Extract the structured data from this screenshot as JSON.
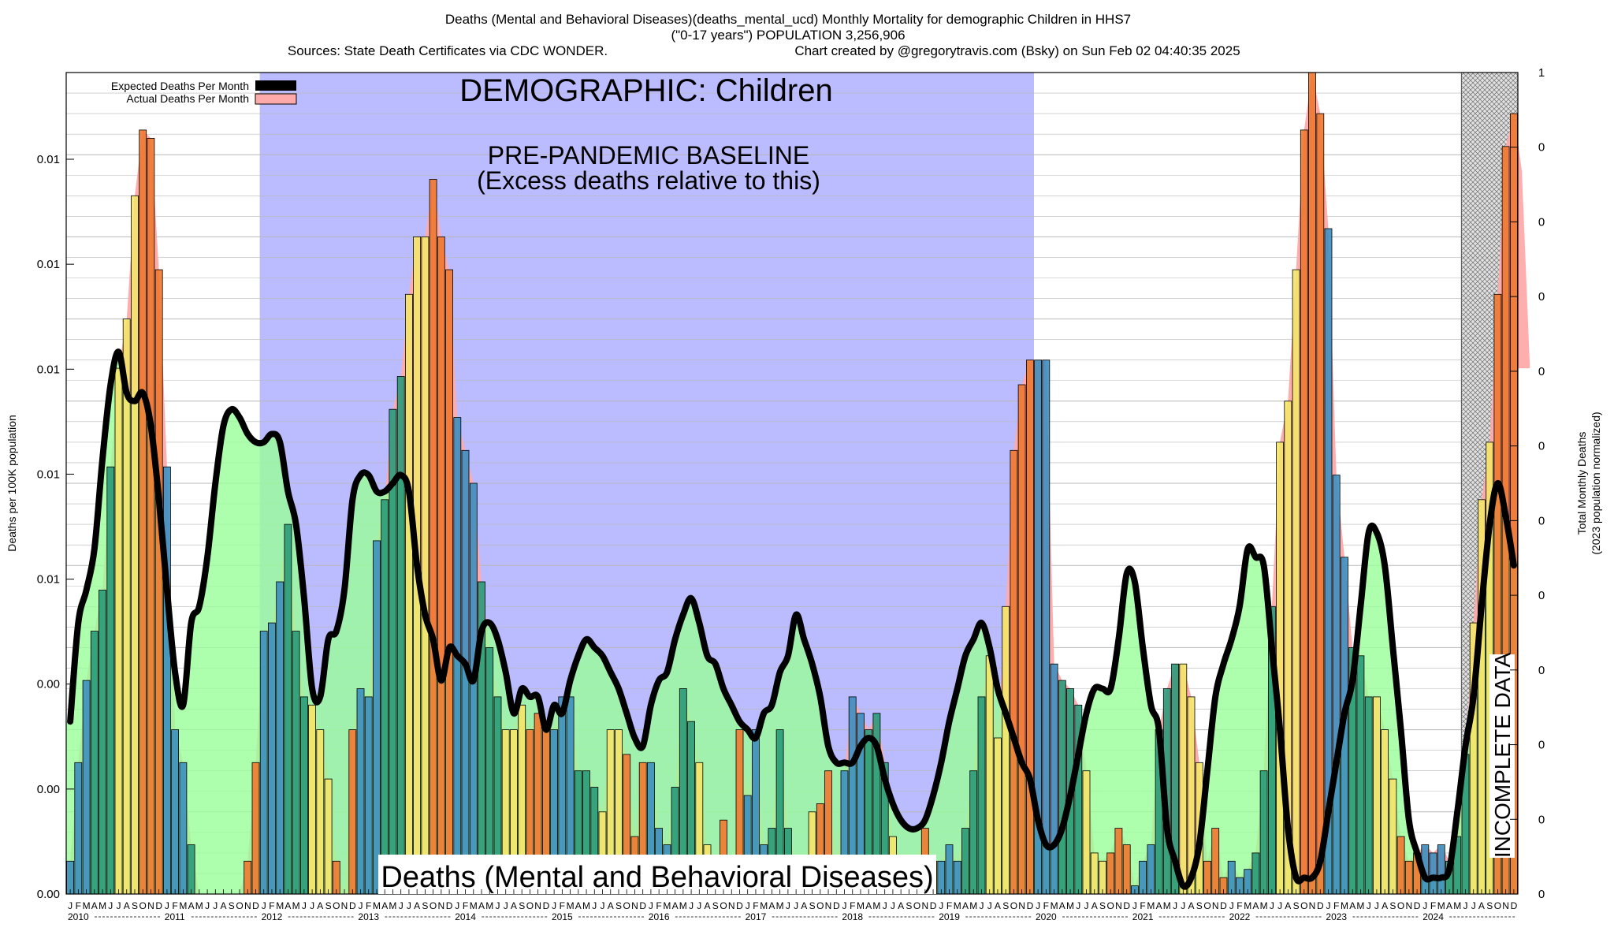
{
  "header": {
    "title_line1": "Deaths (Mental and Behavioral Diseases)(deaths_mental_ucd) Monthly Mortality for demographic Children in HHS7",
    "title_line2": "(\"0-17 years\") POPULATION 3,256,906",
    "sources": "Sources: State Death Certificates via CDC WONDER.",
    "credit": "Chart created by @gregorytravis.com (Bsky) on Sun Feb 02 04:40:35 2025"
  },
  "legend": {
    "expected": "Expected Deaths Per Month",
    "actual": "Actual Deaths Per Month",
    "placement": "top-left"
  },
  "annotations": {
    "demographic": "DEMOGRAPHIC: Children",
    "baseline_line1": "PRE-PANDEMIC BASELINE",
    "baseline_line2": "(Excess deaths relative to this)",
    "bottom_label": "Deaths (Mental and Behavioral Diseases)",
    "incomplete": "INCOMPLETE DATA"
  },
  "axes": {
    "ylabel_left": "Deaths per 100K population",
    "ylabel_right_line1": "Total Monthly Deaths",
    "ylabel_right_line2": "(2023 population normalized)",
    "left_ticks": [
      "0.00",
      "0.00",
      "0.00",
      "0.01",
      "0.01",
      "0.01",
      "0.01",
      "0.01"
    ],
    "right_ticks": [
      "0",
      "0",
      "0",
      "0",
      "0",
      "0",
      "0",
      "0",
      "0",
      "0",
      "0",
      "1"
    ],
    "month_letters": [
      "J",
      "F",
      "M",
      "A",
      "M",
      "J",
      "J",
      "A",
      "S",
      "O",
      "N",
      "D"
    ],
    "years": [
      "2010",
      "2011",
      "2012",
      "2013",
      "2014",
      "2015",
      "2016",
      "2017",
      "2018",
      "2019",
      "2020",
      "2021",
      "2022",
      "2023",
      "2024"
    ]
  },
  "colors": {
    "baseline_band": "#bbbbff",
    "expected_line": "#000000",
    "actual_fill": "#ffaaaa",
    "expected_fill_green": "#99ff99",
    "bar_blue": "#3d8ebf",
    "bar_teal": "#2a9a7a",
    "bar_yellow": "#f5e46a",
    "bar_orange": "#f07830"
  },
  "chart_data": {
    "type": "bar",
    "x_start": "2010-01",
    "months": 180,
    "baseline_period": [
      "2012-01",
      "2019-12"
    ],
    "incomplete_period": [
      "2024-06",
      "2024-12"
    ],
    "ylim": [
      0,
      1
    ],
    "grid": true,
    "series": [
      {
        "name": "Actual Deaths Per Month",
        "values": [
          0.04,
          0.16,
          0.26,
          0.32,
          0.37,
          0.52,
          0.64,
          0.7,
          0.85,
          0.93,
          0.92,
          0.76,
          0.52,
          0.2,
          0.16,
          0.06,
          0,
          0,
          0,
          0,
          0,
          0,
          0.04,
          0.16,
          0.32,
          0.33,
          0.38,
          0.45,
          0.32,
          0.24,
          0.23,
          0.2,
          0.14,
          0.04,
          0,
          0.2,
          0.25,
          0.24,
          0.43,
          0.48,
          0.59,
          0.63,
          0.73,
          0.8,
          0.8,
          0.87,
          0.8,
          0.76,
          0.58,
          0.54,
          0.5,
          0.38,
          0.3,
          0.24,
          0.2,
          0.2,
          0.23,
          0.2,
          0.22,
          0.21,
          0.2,
          0.24,
          0.24,
          0.15,
          0.15,
          0.13,
          0.1,
          0.2,
          0.2,
          0.17,
          0.07,
          0.16,
          0.16,
          0.08,
          0.06,
          0.13,
          0.25,
          0.21,
          0.16,
          0.06,
          0.04,
          0.09,
          0,
          0.2,
          0.12,
          0.2,
          0.06,
          0.08,
          0.2,
          0.08,
          0.04,
          0.03,
          0.1,
          0.11,
          0.15,
          0.04,
          0.15,
          0.24,
          0.22,
          0.2,
          0.22,
          0.16,
          0.07,
          0.04,
          0.02,
          0.04,
          0.08,
          0.04,
          0.04,
          0.06,
          0.04,
          0.08,
          0.15,
          0.24,
          0.29,
          0.19,
          0.35,
          0.54,
          0.62,
          0.65,
          0.65,
          0.65,
          0.28,
          0.26,
          0.25,
          0.23,
          0.15,
          0.05,
          0.04,
          0.05,
          0.08,
          0.06,
          0.01,
          0.04,
          0.06,
          0.2,
          0.25,
          0.28,
          0.28,
          0.24,
          0.16,
          0.04,
          0.08,
          0.02,
          0.04,
          0.02,
          0.03,
          0.05,
          0.15,
          0.35,
          0.55,
          0.6,
          0.76,
          0.93,
          1.0,
          0.95,
          0.81,
          0.51,
          0.41,
          0.3,
          0.29,
          0.24,
          0.24,
          0.2,
          0.14,
          0.07,
          0.04,
          0.05,
          0.06,
          0.05,
          0.06,
          0.04,
          0.07,
          0.17,
          0.33,
          0.48,
          0.55,
          0.73,
          0.91,
          0.95,
          0.88,
          0.64
        ]
      },
      {
        "name": "Expected Deaths Per Month",
        "values": [
          0.21,
          0.33,
          0.37,
          0.42,
          0.53,
          0.62,
          0.66,
          0.61,
          0.6,
          0.61,
          0.57,
          0.48,
          0.37,
          0.27,
          0.23,
          0.33,
          0.35,
          0.41,
          0.5,
          0.57,
          0.59,
          0.58,
          0.56,
          0.55,
          0.55,
          0.56,
          0.55,
          0.49,
          0.45,
          0.36,
          0.25,
          0.24,
          0.31,
          0.32,
          0.37,
          0.48,
          0.51,
          0.51,
          0.49,
          0.49,
          0.5,
          0.51,
          0.49,
          0.4,
          0.34,
          0.31,
          0.26,
          0.3,
          0.29,
          0.28,
          0.26,
          0.32,
          0.33,
          0.31,
          0.27,
          0.22,
          0.25,
          0.24,
          0.24,
          0.2,
          0.23,
          0.22,
          0.26,
          0.29,
          0.31,
          0.3,
          0.29,
          0.27,
          0.25,
          0.22,
          0.19,
          0.18,
          0.23,
          0.26,
          0.27,
          0.31,
          0.34,
          0.36,
          0.33,
          0.29,
          0.28,
          0.25,
          0.23,
          0.21,
          0.2,
          0.19,
          0.22,
          0.23,
          0.27,
          0.29,
          0.34,
          0.31,
          0.28,
          0.24,
          0.18,
          0.16,
          0.16,
          0.16,
          0.18,
          0.19,
          0.18,
          0.14,
          0.11,
          0.09,
          0.08,
          0.08,
          0.09,
          0.12,
          0.16,
          0.21,
          0.25,
          0.29,
          0.31,
          0.33,
          0.3,
          0.25,
          0.22,
          0.19,
          0.16,
          0.14,
          0.09,
          0.06,
          0.06,
          0.08,
          0.12,
          0.17,
          0.22,
          0.25,
          0.25,
          0.25,
          0.31,
          0.39,
          0.38,
          0.3,
          0.23,
          0.2,
          0.08,
          0.04,
          0.01,
          0.02,
          0.06,
          0.15,
          0.24,
          0.28,
          0.31,
          0.35,
          0.42,
          0.41,
          0.4,
          0.3,
          0.2,
          0.08,
          0.02,
          0.02,
          0.02,
          0.04,
          0.1,
          0.16,
          0.22,
          0.26,
          0.35,
          0.44,
          0.44,
          0.4,
          0.3,
          0.2,
          0.09,
          0.05,
          0.02,
          0.02,
          0.02,
          0.03,
          0.1,
          0.18,
          0.24,
          0.35,
          0.45,
          0.5,
          0.46,
          0.4
        ]
      }
    ]
  }
}
